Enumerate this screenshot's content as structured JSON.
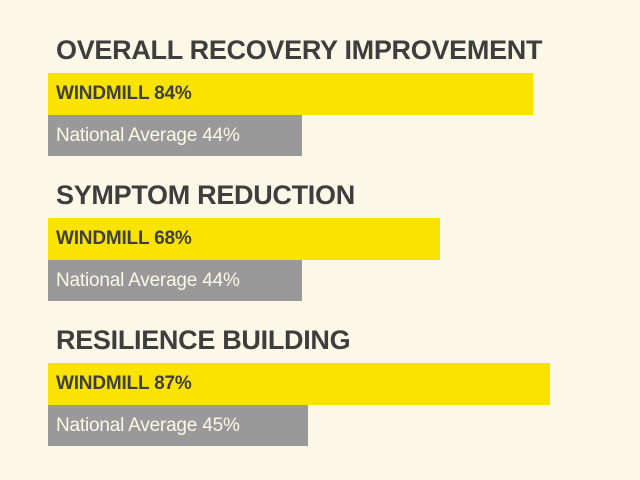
{
  "page": {
    "background": "#FCF8E7"
  },
  "colors": {
    "windmill_bar": "#FBE300",
    "average_bar": "#999999",
    "title_text": "#3E3E3E",
    "windmill_text": "#3E3E3E",
    "average_text": "#FCF8E7"
  },
  "chart_data": {
    "type": "bar",
    "orientation": "horizontal",
    "title": "",
    "categories": [
      "OVERALL RECOVERY IMPROVEMENT",
      "SYMPTOM REDUCTION",
      "RESILIENCE BUILDING"
    ],
    "series": [
      {
        "name": "WINDMILL",
        "values": [
          84,
          68,
          87
        ],
        "color": "#FBE300"
      },
      {
        "name": "National Average",
        "values": [
          44,
          44,
          45
        ],
        "color": "#999999"
      }
    ],
    "value_unit": "%",
    "xlim": [
      0,
      100
    ],
    "grid": false,
    "legend_position": "none",
    "bar_labels_inside": true
  },
  "sections": [
    {
      "title": "OVERALL RECOVERY IMPROVEMENT",
      "windmill": {
        "label": "WINDMILL 84%",
        "value": 84
      },
      "average": {
        "label": "National Average 44%",
        "value": 44
      }
    },
    {
      "title": "SYMPTOM REDUCTION",
      "windmill": {
        "label": "WINDMILL 68%",
        "value": 68
      },
      "average": {
        "label": "National Average 44%",
        "value": 44
      }
    },
    {
      "title": "RESILIENCE BUILDING",
      "windmill": {
        "label": "WINDMILL 87%",
        "value": 87
      },
      "average": {
        "label": "National Average 45%",
        "value": 45
      }
    }
  ]
}
